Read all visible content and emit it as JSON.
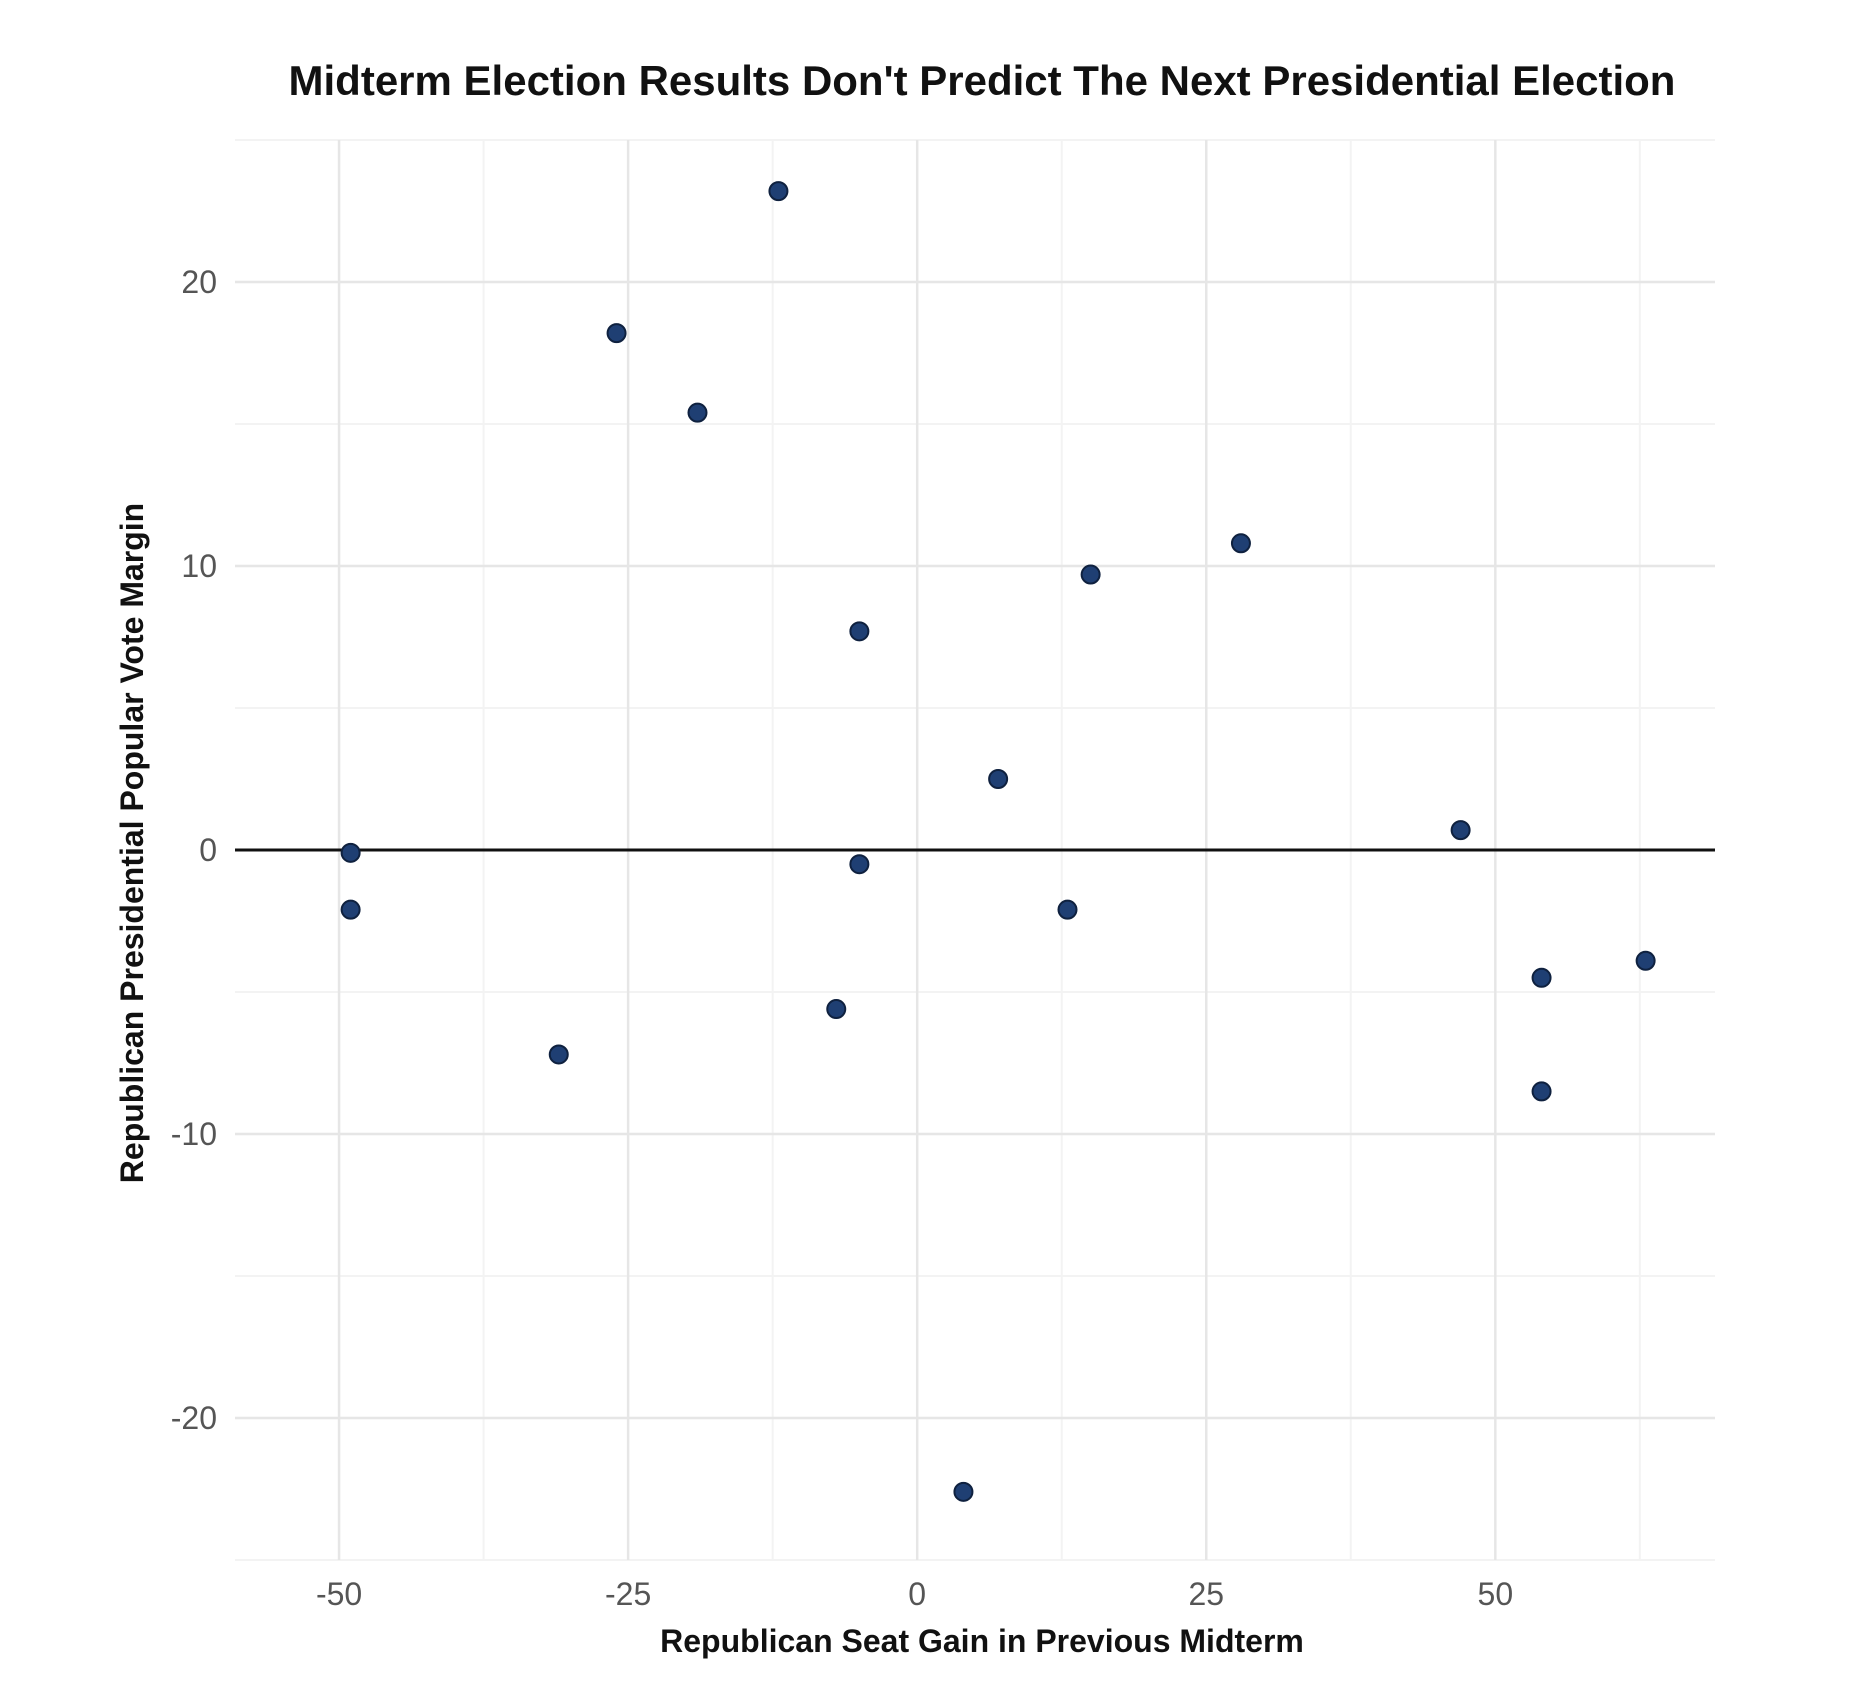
{
  "chart_data": {
    "type": "scatter",
    "title": "Midterm Election Results Don't Predict The Next Presidential Election",
    "xlabel": "Republican Seat Gain in Previous Midterm",
    "ylabel": "Republican Presidential Popular Vote Margin",
    "xlim": [
      -59,
      69
    ],
    "ylim": [
      -25,
      25
    ],
    "x_ticks": [
      -50,
      -25,
      0,
      25,
      50
    ],
    "x_tick_labels": [
      "-50",
      "-25",
      "0",
      "25",
      "50"
    ],
    "y_ticks": [
      -20,
      -10,
      0,
      10,
      20
    ],
    "y_tick_labels": [
      "-20",
      "-10",
      "0",
      "10",
      "20"
    ],
    "grid": true,
    "reference_line_y": 0,
    "point_color": "#1f3f73",
    "point_edge_color": "#0f213f",
    "points": [
      {
        "x": -49,
        "y": -0.1
      },
      {
        "x": -49,
        "y": -2.1
      },
      {
        "x": -31,
        "y": -7.2
      },
      {
        "x": -26,
        "y": 18.2
      },
      {
        "x": -19,
        "y": 15.4
      },
      {
        "x": -12,
        "y": 23.2
      },
      {
        "x": -7,
        "y": -5.6
      },
      {
        "x": -5,
        "y": 7.7
      },
      {
        "x": -5,
        "y": -0.5
      },
      {
        "x": 4,
        "y": -22.6
      },
      {
        "x": 7,
        "y": 2.5
      },
      {
        "x": 13,
        "y": -2.1
      },
      {
        "x": 15,
        "y": 9.7
      },
      {
        "x": 28,
        "y": 10.8
      },
      {
        "x": 47,
        "y": 0.7
      },
      {
        "x": 54,
        "y": -4.5
      },
      {
        "x": 54,
        "y": -8.5
      },
      {
        "x": 63,
        "y": -3.9
      }
    ]
  }
}
